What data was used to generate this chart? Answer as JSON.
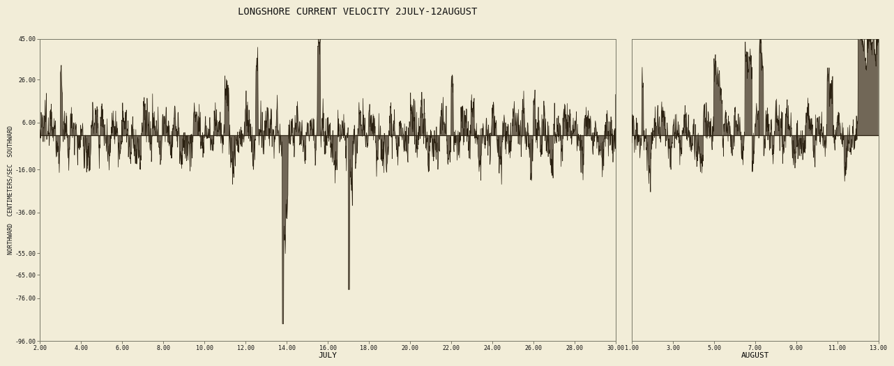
{
  "title": "LONGSHORE CURRENT VELOCITY 2JULY-12AUGUST",
  "ylabel": "NORTHWARD  CENTIMETERS/SEC  SOUTHWARD",
  "xlabel_july": "JULY",
  "xlabel_august": "AUGUST",
  "ylim": [
    -96,
    45
  ],
  "yticks": [
    -96,
    -76,
    -65,
    -55,
    -36,
    -16,
    6,
    26,
    45
  ],
  "ytick_labels": [
    "-96.00",
    "-76.00",
    "-65.00",
    "-55.00",
    "-36.00",
    "-16.00",
    "6.00",
    "26.00",
    "45.00"
  ],
  "july_xlim": [
    2,
    30
  ],
  "august_xlim": [
    1,
    13
  ],
  "july_xticks": [
    2,
    4,
    6,
    8,
    10,
    12,
    14,
    16,
    18,
    20,
    22,
    24,
    26,
    28,
    30
  ],
  "august_xticks": [
    1,
    3,
    5,
    7,
    9,
    11,
    13
  ],
  "bg_color": "#f2edd8",
  "line_color": "#2a2010",
  "fill_color": "#5a5040",
  "title_fontsize": 10,
  "axis_label_fontsize": 6,
  "tick_fontsize": 6
}
